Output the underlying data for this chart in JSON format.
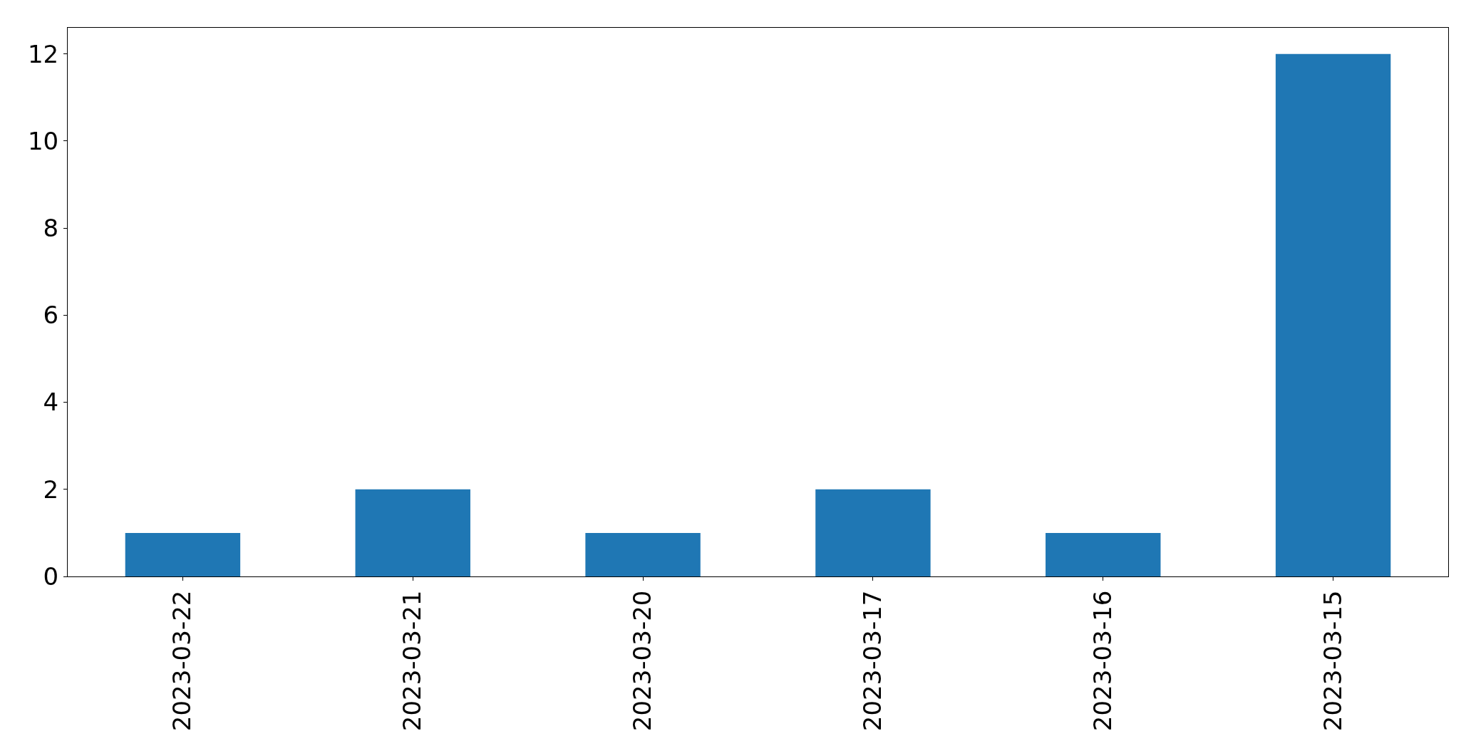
{
  "chart_data": {
    "type": "bar",
    "categories": [
      "2023-03-22",
      "2023-03-21",
      "2023-03-20",
      "2023-03-17",
      "2023-03-16",
      "2023-03-15"
    ],
    "values": [
      1,
      2,
      1,
      2,
      1,
      12
    ],
    "color": "#1f77b4",
    "ylim": [
      0,
      12.6
    ],
    "yticks": [
      0,
      2,
      4,
      6,
      8,
      10,
      12
    ],
    "grid": false
  }
}
